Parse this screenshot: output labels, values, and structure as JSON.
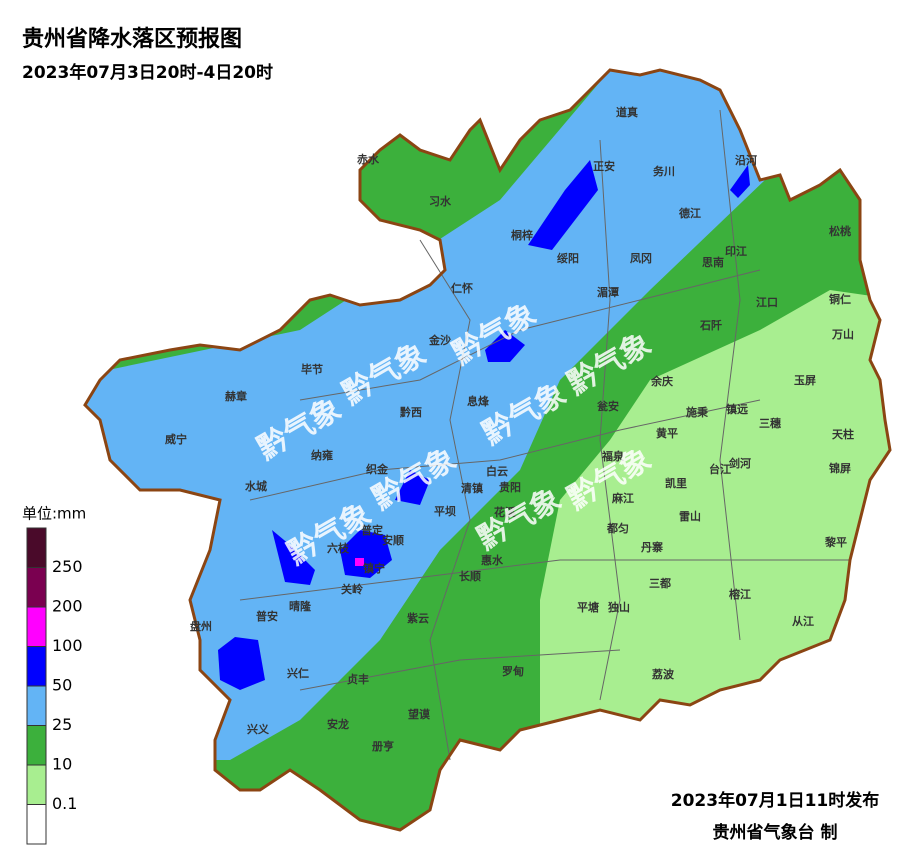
{
  "header": {
    "title": "贵州省降水落区预报图",
    "subtitle": "2023年07月3日20时-4日20时"
  },
  "legend": {
    "unit": "单位:mm",
    "colors": [
      "#4a0a2a",
      "#7a0050",
      "#ff00ff",
      "#0000ff",
      "#63b4f5",
      "#3cb03c",
      "#a8ee90",
      "#ffffff"
    ],
    "labels": [
      "250",
      "200",
      "100",
      "50",
      "25",
      "10",
      "0.1"
    ]
  },
  "watermark": "黔气象",
  "counties": [
    "赤水",
    "习水",
    "道真",
    "正安",
    "务川",
    "沿河",
    "桐梓",
    "绥阳",
    "凤冈",
    "德江",
    "印江",
    "思南",
    "松桃",
    "仁怀",
    "湄潭",
    "江口",
    "铜仁",
    "石阡",
    "万山",
    "金沙",
    "毕节",
    "余庆",
    "玉屏",
    "赫章",
    "黔西",
    "息烽",
    "瓮安",
    "施秉",
    "镇远",
    "三穗",
    "天柱",
    "威宁",
    "纳雍",
    "织金",
    "白云",
    "黄平",
    "台江",
    "剑河",
    "锦屏",
    "水城",
    "清镇",
    "贵阳",
    "福泉",
    "凯里",
    "麻江",
    "平坝",
    "花溪",
    "雷山",
    "普定",
    "安顺",
    "六枝",
    "都匀",
    "黎平",
    "镇宁",
    "长顺",
    "丹寨",
    "关岭",
    "惠水",
    "三都",
    "榕江",
    "晴隆",
    "普安",
    "紫云",
    "平塘",
    "独山",
    "从江",
    "盘州",
    "兴仁",
    "罗甸",
    "荔波",
    "贞丰",
    "兴义",
    "安龙",
    "望谟",
    "册亨"
  ],
  "footer": {
    "issued": "2023年07月1日11时发布",
    "agency": "贵州省气象台 制"
  }
}
